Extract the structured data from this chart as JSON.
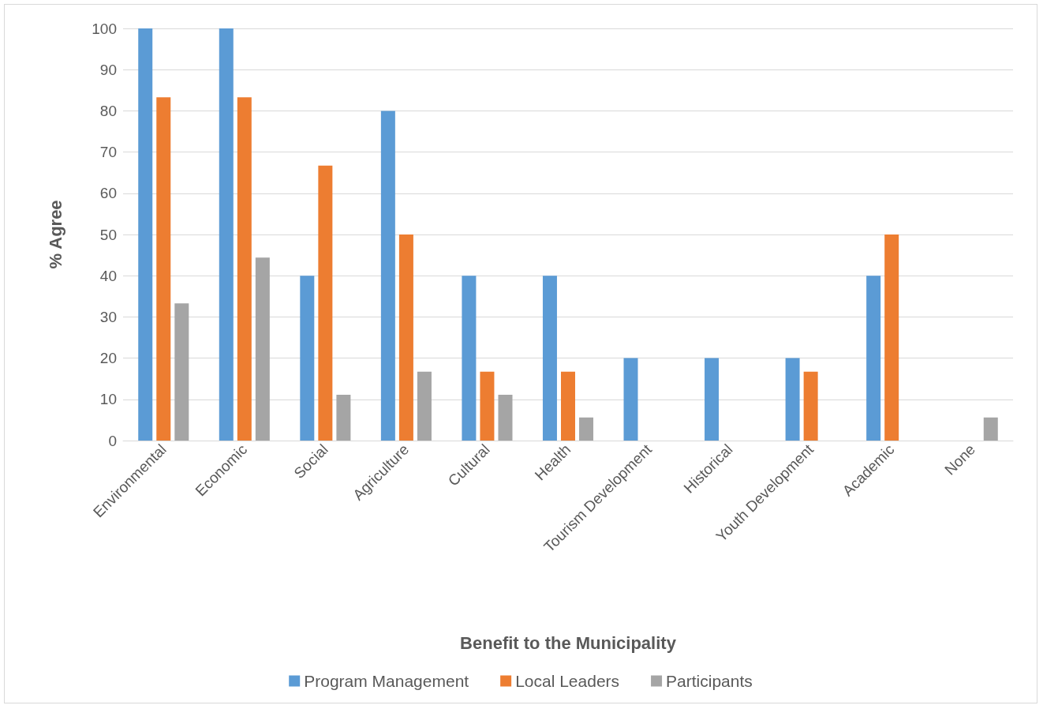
{
  "chart_data": {
    "type": "bar",
    "xlabel": "Benefit to the Municipality",
    "ylabel": "% Agree",
    "categories": [
      "Environmental",
      "Economic",
      "Social",
      "Agriculture",
      "Cultural",
      "Health",
      "Tourism Development",
      "Historical",
      "Youth Development",
      "Academic",
      "None"
    ],
    "series": [
      {
        "name": "Program Management",
        "color": "#5b9bd5",
        "values": [
          100,
          100,
          40,
          80,
          40,
          40,
          20,
          20,
          20,
          40,
          0
        ]
      },
      {
        "name": "Local Leaders",
        "color": "#ed7d31",
        "values": [
          83.3,
          83.3,
          66.7,
          50,
          16.7,
          16.7,
          0,
          0,
          16.7,
          50,
          0
        ]
      },
      {
        "name": "Participants",
        "color": "#a5a5a5",
        "values": [
          33.3,
          44.4,
          11.1,
          16.7,
          11.1,
          5.6,
          0,
          0,
          0,
          0,
          5.6
        ]
      }
    ],
    "ylim": [
      0,
      100
    ],
    "yticks": [
      0,
      10,
      20,
      30,
      40,
      50,
      60,
      70,
      80,
      90,
      100
    ],
    "grid": "y",
    "legend": "bottom"
  }
}
